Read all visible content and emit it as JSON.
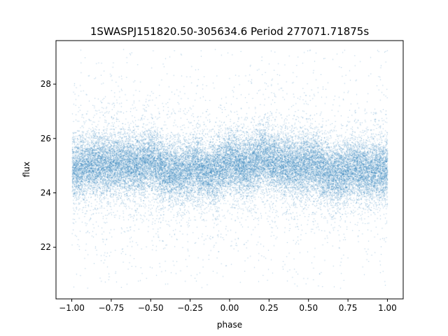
{
  "chart_data": {
    "type": "scatter",
    "title": "1SWASPJ151820.50-305634.6 Period 277071.71875s",
    "xlabel": "phase",
    "ylabel": "flux",
    "xlim": [
      -1.1,
      1.1
    ],
    "ylim": [
      20.1,
      29.6
    ],
    "xticks": [
      -1.0,
      -0.75,
      -0.5,
      -0.25,
      0.0,
      0.25,
      0.5,
      0.75,
      1.0
    ],
    "xtick_labels": [
      "−1.00",
      "−0.75",
      "−0.50",
      "−0.25",
      "0.00",
      "0.25",
      "0.50",
      "0.75",
      "1.00"
    ],
    "yticks": [
      22,
      24,
      26,
      28
    ],
    "ytick_labels": [
      "22",
      "24",
      "26",
      "28"
    ],
    "grid": false,
    "legend": "none",
    "point_color": "#1f77b4",
    "series": [
      {
        "x_range": [
          -1.0,
          1.0
        ],
        "mean_flux": 24.9,
        "core_band": [
          23.8,
          26.0
        ],
        "outlier_range": [
          20.5,
          29.3
        ],
        "approx_points": 30000
      }
    ]
  }
}
